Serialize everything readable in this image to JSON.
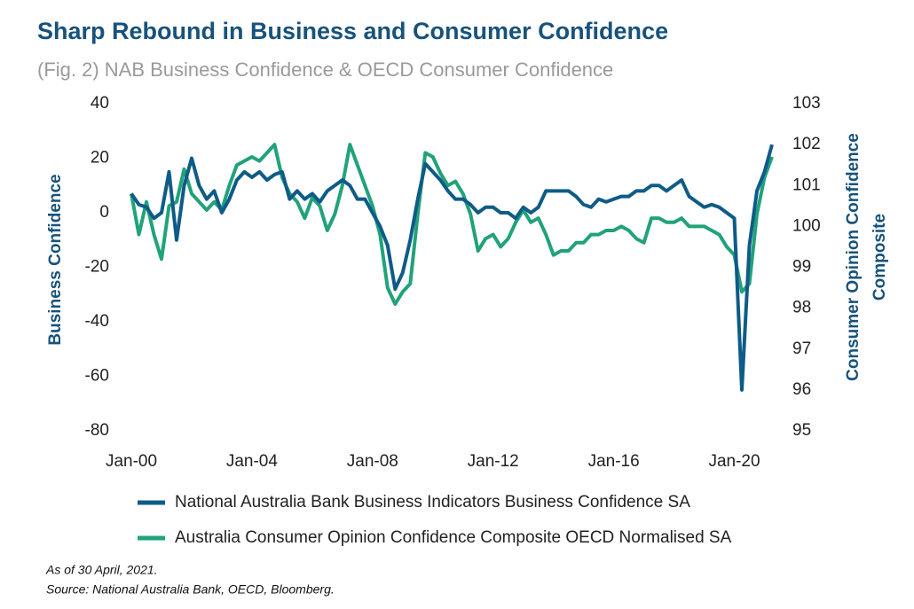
{
  "chart_data": {
    "type": "line",
    "title": "Sharp Rebound in Business and Consumer Confidence",
    "subtitle": "(Fig. 2) NAB Business Confidence & OECD Consumer Confidence",
    "ylabel": "Business Confidence",
    "y2label": [
      "Consumer Opinion Confidence",
      "Composite"
    ],
    "x": [
      "Jan-00",
      "Apr-00",
      "Jul-00",
      "Oct-00",
      "Jan-01",
      "Apr-01",
      "Jul-01",
      "Oct-01",
      "Jan-02",
      "Apr-02",
      "Jul-02",
      "Oct-02",
      "Jan-03",
      "Apr-03",
      "Jul-03",
      "Oct-03",
      "Jan-04",
      "Apr-04",
      "Jul-04",
      "Oct-04",
      "Jan-05",
      "Apr-05",
      "Jul-05",
      "Oct-05",
      "Jan-06",
      "Apr-06",
      "Jul-06",
      "Oct-06",
      "Jan-07",
      "Apr-07",
      "Jul-07",
      "Oct-07",
      "Jan-08",
      "Apr-08",
      "Jul-08",
      "Oct-08",
      "Jan-09",
      "Apr-09",
      "Jul-09",
      "Oct-09",
      "Jan-10",
      "Apr-10",
      "Jul-10",
      "Oct-10",
      "Jan-11",
      "Apr-11",
      "Jul-11",
      "Oct-11",
      "Jan-12",
      "Apr-12",
      "Jul-12",
      "Oct-12",
      "Jan-13",
      "Apr-13",
      "Jul-13",
      "Oct-13",
      "Jan-14",
      "Apr-14",
      "Jul-14",
      "Oct-14",
      "Jan-15",
      "Apr-15",
      "Jul-15",
      "Oct-15",
      "Jan-16",
      "Apr-16",
      "Jul-16",
      "Oct-16",
      "Jan-17",
      "Apr-17",
      "Jul-17",
      "Oct-17",
      "Jan-18",
      "Apr-18",
      "Jul-18",
      "Oct-18",
      "Jan-19",
      "Apr-19",
      "Jul-19",
      "Oct-19",
      "Jan-20",
      "Apr-20",
      "Jul-20",
      "Oct-20",
      "Jan-21",
      "Apr-21"
    ],
    "xticks": [
      "Jan-00",
      "Jan-04",
      "Jan-08",
      "Jan-12",
      "Jan-16",
      "Jan-20"
    ],
    "ylim": [
      -80,
      40
    ],
    "yticks": [
      -80,
      -60,
      -40,
      -20,
      0,
      20,
      40
    ],
    "y2lim": [
      95,
      103
    ],
    "y2ticks": [
      95,
      96,
      97,
      98,
      99,
      100,
      101,
      102,
      103
    ],
    "series": [
      {
        "name": "National Australia Bank Business Indicators Business Confidence SA",
        "color": "#0f5b88",
        "values": [
          7,
          3,
          2,
          -2,
          0,
          15,
          -10,
          10,
          20,
          10,
          5,
          8,
          0,
          5,
          12,
          15,
          13,
          15,
          12,
          14,
          15,
          5,
          8,
          5,
          7,
          4,
          8,
          10,
          12,
          10,
          5,
          5,
          0,
          -5,
          -12,
          -28,
          -22,
          -10,
          5,
          18,
          15,
          12,
          8,
          5,
          5,
          3,
          0,
          2,
          2,
          0,
          0,
          -2,
          2,
          0,
          2,
          8,
          8,
          8,
          8,
          6,
          3,
          2,
          5,
          4,
          5,
          6,
          6,
          8,
          8,
          10,
          10,
          8,
          10,
          12,
          6,
          4,
          2,
          3,
          2,
          0,
          -2,
          -65,
          -12,
          8,
          15,
          25
        ]
      },
      {
        "name": "Australia Consumer Opinion Confidence Composite OECD Normalised SA",
        "color": "#21a27a",
        "axis": "y2",
        "values": [
          100.8,
          99.8,
          100.6,
          99.8,
          99.2,
          100.5,
          100.6,
          101.4,
          100.8,
          100.6,
          100.4,
          100.6,
          100.4,
          101.0,
          101.5,
          101.6,
          101.7,
          101.6,
          101.8,
          102.0,
          101.2,
          100.8,
          100.6,
          100.2,
          100.7,
          100.5,
          99.9,
          100.3,
          101.0,
          102.0,
          101.5,
          101.0,
          100.5,
          99.8,
          98.5,
          98.1,
          98.4,
          98.6,
          100.3,
          101.8,
          101.7,
          101.3,
          101.0,
          101.1,
          100.8,
          100.3,
          99.4,
          99.7,
          99.8,
          99.5,
          99.7,
          100.1,
          100.4,
          100.1,
          100.2,
          99.8,
          99.3,
          99.4,
          99.4,
          99.6,
          99.6,
          99.8,
          99.8,
          99.9,
          99.9,
          100.0,
          99.9,
          99.7,
          99.6,
          100.2,
          100.2,
          100.1,
          100.1,
          100.2,
          100.0,
          100.0,
          100.0,
          99.9,
          99.8,
          99.5,
          99.3,
          98.4,
          98.6,
          100.3,
          101.2,
          101.7
        ]
      }
    ],
    "notes": [
      "As of 30 April, 2021.",
      "Source: National Australia Bank, OECD, Bloomberg."
    ]
  }
}
